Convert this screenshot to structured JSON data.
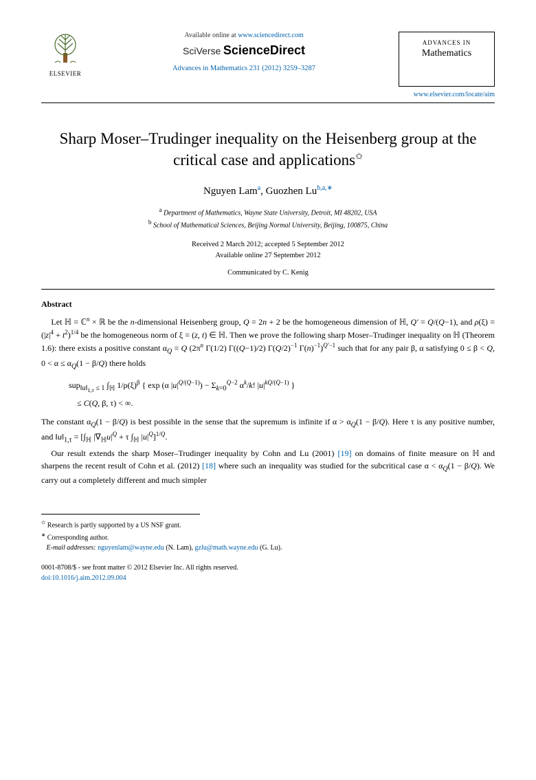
{
  "header": {
    "available_text": "Available online at ",
    "available_url": "www.sciencedirect.com",
    "sciverse_label": "SciVerse",
    "sciencedirect_label": "ScienceDirect",
    "journal_ref": "Advances in Mathematics 231 (2012) 3259–3287",
    "journal_name_top": "ADVANCES IN",
    "journal_name_bottom": "Mathematics",
    "locate_url": "www.elsevier.com/locate/aim",
    "publisher_label": "ELSEVIER"
  },
  "title": {
    "text": "Sharp Moser–Trudinger inequality on the Heisenberg group at the critical case and applications",
    "note_symbol": "✩"
  },
  "authors": [
    {
      "name": "Nguyen Lam",
      "marks": "a"
    },
    {
      "name": "Guozhen Lu",
      "marks": "b,a,∗"
    }
  ],
  "author_join": ", ",
  "affiliations": [
    {
      "mark": "a",
      "text": "Department of Mathematics, Wayne State University, Detroit, MI 48202, USA"
    },
    {
      "mark": "b",
      "text": "School of Mathematical Sciences, Beijing Normal University, Beijing, 100875, China"
    }
  ],
  "dates": {
    "received_accepted": "Received 2 March 2012; accepted 5 September 2012",
    "online": "Available online 27 September 2012"
  },
  "communicated": "Communicated by C. Kenig",
  "abstract": {
    "heading": "Abstract",
    "p1_html": "Let ℍ = ℂ<sup><i>n</i></sup> × ℝ be the <i>n</i>-dimensional Heisenberg group, <i>Q</i> = 2<i>n</i> + 2 be the homogeneous dimension of ℍ, <i>Q'</i> = <i>Q</i>/(<i>Q</i>−1), and <i>ρ</i>(ξ) = (|<i>z</i>|<sup>4</sup> + <i>t</i><sup>2</sup>)<sup>1/4</sup> be the homogeneous norm of ξ = (<i>z</i>, <i>t</i>) ∈ ℍ. Then we prove the following sharp Moser–Trudinger inequality on ℍ (Theorem 1.6): there exists a positive constant α<sub><i>Q</i></sub> = <i>Q</i> (2π<sup><i>n</i></sup> Γ(1/2) Γ((<i>Q</i>−1)/2) Γ(<i>Q</i>/2)<sup>−1</sup> Γ(<i>n</i>)<sup>−1</sup>)<sup><i>Q'</i>−1</sup> such that for any pair β, α satisfying 0 ≤ β < <i>Q</i>, 0 < α ≤ α<sub><i>Q</i></sub>(1 − β/<i>Q</i>) there holds",
    "display_html": "sup<sub>‖<i>u</i>‖<sub>1,τ</sub> ≤ 1</sub> ∫<sub>ℍ</sub> 1/ρ(ξ)<sup>β</sup> { exp (α |<i>u</i>|<sup><i>Q</i>/(<i>Q</i>−1)</sup>) − Σ<sub><i>k</i>=0</sub><sup><i>Q</i>−2</sup> α<sup><i>k</i></sup>/<i>k</i>! |<i>u</i>|<sup><i>kQ</i>/(<i>Q</i>−1)</sup> }<br>&nbsp;&nbsp;&nbsp;&nbsp;≤ <i>C</i>(<i>Q</i>, β, τ) < ∞.",
    "p2_html": "The constant α<sub><i>Q</i></sub>(1 − β/<i>Q</i>) is best possible in the sense that the supremum is infinite if α > α<sub><i>Q</i></sub>(1 − β/<i>Q</i>). Here τ is any positive number, and ‖<i>u</i>‖<sub>1,τ</sub> = [∫<sub>ℍ</sub> |∇<sub>ℍ</sub><i>u</i>|<sup><i>Q</i></sup> + τ ∫<sub>ℍ</sub> |<i>u</i>|<sup><i>Q</i></sup>]<sup>1/<i>Q</i></sup>.",
    "p3_html": "Our result extends the sharp Moser–Trudinger inequality by Cohn and Lu (2001) <a href='#'>[19]</a> on domains of finite measure on ℍ and sharpens the recent result of Cohn et al. (2012) <a href='#'>[18]</a> where such an inequality was studied for the subcritical case α < α<sub><i>Q</i></sub>(1 − β/<i>Q</i>). We carry out a completely different and much simpler"
  },
  "footnotes": {
    "funding_symbol": "✩",
    "funding": "Research is partly supported by a US NSF grant.",
    "corresponding_symbol": "∗",
    "corresponding": "Corresponding author.",
    "email_label": "E-mail addresses:",
    "emails": [
      {
        "addr": "nguyenlam@wayne.edu",
        "who": "(N. Lam)"
      },
      {
        "addr": "gzlu@math.wayne.edu",
        "who": "(G. Lu)"
      }
    ]
  },
  "copyright": {
    "line1": "0001-8708/$ - see front matter © 2012 Elsevier Inc. All rights reserved.",
    "doi": "doi:10.1016/j.aim.2012.09.004"
  },
  "colors": {
    "link": "#0060aa",
    "text": "#000000",
    "background": "#ffffff",
    "logo_orange": "#e8751a"
  }
}
